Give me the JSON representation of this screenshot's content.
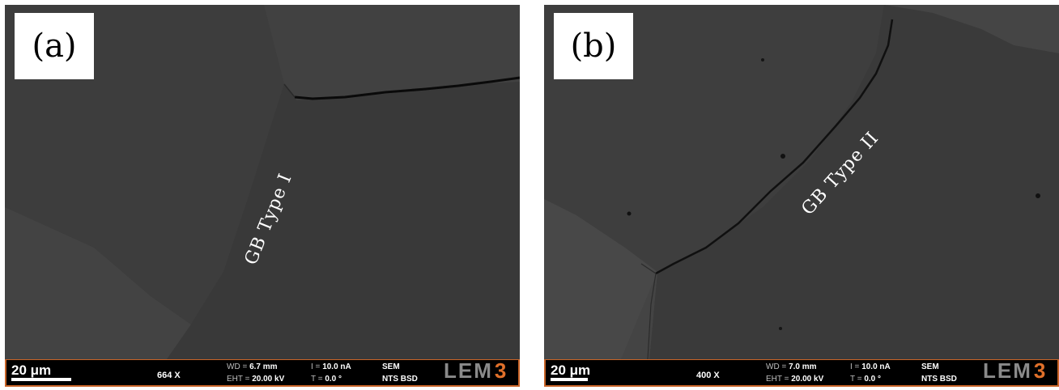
{
  "panels": [
    {
      "label": "(a)",
      "annotation": "GB Type I",
      "scale": "20 μm",
      "magnification": "664 X",
      "wd_label": "WD =",
      "wd_value": "6.7 mm",
      "eht_label": "EHT =",
      "eht_value": "20.00 kV",
      "i_label": "I =",
      "i_value": "10.0 nA",
      "t_label": "T =",
      "t_value": "0.0 °",
      "detector_1": "SEM",
      "detector_2": "NTS BSD",
      "logo_a": "LEM",
      "logo_b": "3"
    },
    {
      "label": "(b)",
      "annotation": "GB Type II",
      "scale": "20 μm",
      "magnification": "400 X",
      "wd_label": "WD =",
      "wd_value": "7.0 mm",
      "eht_label": "EHT =",
      "eht_value": "20.00 kV",
      "i_label": "I =",
      "i_value": "10.0 nA",
      "t_label": "T =",
      "t_value": "0.0 °",
      "detector_1": "SEM",
      "detector_2": "NTS BSD",
      "logo_a": "LEM",
      "logo_b": "3"
    }
  ],
  "colors": {
    "frame_accent": "#c86428",
    "logo_accent": "#e0702a",
    "grain_dark": "#3a3a3a",
    "grain_light": "#4a4a4a"
  }
}
